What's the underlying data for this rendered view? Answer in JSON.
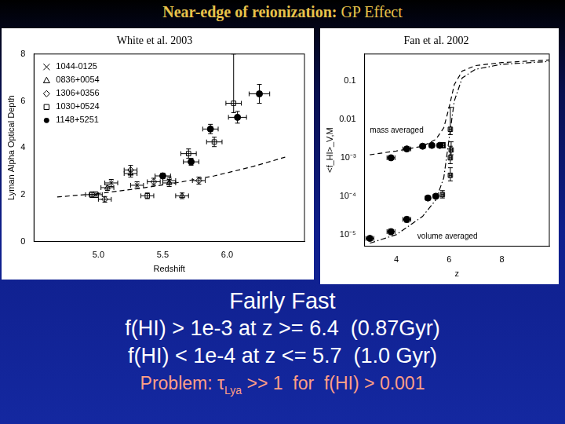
{
  "slide": {
    "title": "Near-edge of reionization:",
    "title_rest": "GP Effect",
    "lines": [
      "Fairly Fast",
      "f(HI) > 1e-3 at z >= 6.4  (0.87Gyr)",
      "f(HI) < 1e-4 at z <= 5.7  (1.0 Gyr)"
    ],
    "problem": [
      {
        "text": "Problem: τ"
      },
      {
        "text": "Lya",
        "sub": true
      },
      {
        "text": " >> 1  for  f(HI) > 0.001"
      }
    ]
  },
  "chart_data": [
    {
      "type": "scatter",
      "title": "White et al. 2003",
      "x_label": "Redshift",
      "y_label": "Lyman Alpha Optical Depth",
      "xlim": [
        4.5,
        6.6
      ],
      "xticks": [
        {
          "value": 5,
          "label": "5.0"
        },
        {
          "value": 5.5,
          "label": "5.5"
        },
        {
          "value": 6,
          "label": "6.0"
        }
      ],
      "ylim": [
        0,
        8
      ],
      "yticks": [
        0,
        2,
        4,
        6,
        8
      ],
      "grid": false,
      "legend": "top-left",
      "series": [
        {
          "name": "1044-0125",
          "color": "#000000",
          "marker": "x",
          "x": [
            4.98,
            5.1,
            5.3,
            5.55
          ],
          "values": [
            2.0,
            2.5,
            2.4,
            2.6
          ],
          "x_err": [
            0.05,
            0.05,
            0.05,
            0.05
          ],
          "y_err": [
            [
              0.12,
              0.12
            ],
            [
              0.15,
              0.15
            ],
            [
              0.15,
              0.15
            ],
            [
              0.15,
              0.15
            ]
          ]
        },
        {
          "name": "0836+0054",
          "color": "#000000",
          "marker": "triangle",
          "x": [
            5.07,
            5.25,
            5.55,
            5.65
          ],
          "values": [
            2.3,
            2.9,
            2.5,
            1.95
          ],
          "x_err": [
            0.05,
            0.05,
            0.05,
            0.05
          ],
          "y_err": [
            [
              0.12,
              0.12
            ],
            [
              0.15,
              0.15
            ],
            [
              0.15,
              0.15
            ],
            [
              0.12,
              0.12
            ]
          ]
        },
        {
          "name": "1306+0356",
          "color": "#000000",
          "marker": "diamond",
          "x": [
            5.05,
            5.25,
            5.43,
            5.78
          ],
          "values": [
            1.8,
            3.05,
            2.55,
            2.6
          ],
          "x_err": [
            0.05,
            0.05,
            0.05,
            0.05
          ],
          "y_err": [
            [
              0.12,
              0.12
            ],
            [
              0.2,
              0.2
            ],
            [
              0.15,
              0.15
            ],
            [
              0.15,
              0.15
            ]
          ]
        },
        {
          "name": "1030+0524",
          "color": "#000000",
          "marker": "square",
          "x": [
            4.95,
            5.38,
            5.7,
            5.9,
            6.05
          ],
          "values": [
            2.0,
            1.95,
            3.75,
            4.25,
            5.9
          ],
          "x_err": [
            0.05,
            0.05,
            0.06,
            0.06,
            0.06
          ],
          "y_err": [
            [
              0.12,
              0.12
            ],
            [
              0.12,
              0.12
            ],
            [
              0.2,
              0.2
            ],
            [
              0.2,
              0.2
            ],
            [
              0.4,
              2.1
            ]
          ]
        },
        {
          "name": "1148+5251",
          "color": "#000000",
          "marker": "circle",
          "x": [
            5.5,
            5.72,
            5.87,
            6.08,
            6.25
          ],
          "values": [
            2.8,
            3.4,
            4.8,
            5.3,
            6.3
          ],
          "x_err": [
            0.06,
            0.06,
            0.06,
            0.07,
            0.08
          ],
          "y_err": [
            [
              0.12,
              0.12
            ],
            [
              0.15,
              0.15
            ],
            [
              0.2,
              0.2
            ],
            [
              0.25,
              0.25
            ],
            [
              0.4,
              0.4
            ]
          ]
        },
        {
          "type": "line",
          "color": "#000000",
          "line_style": "dashed",
          "x": [
            4.68,
            5.0,
            5.3,
            5.6,
            5.9,
            6.2,
            6.45
          ],
          "values": [
            1.9,
            2.05,
            2.25,
            2.5,
            2.8,
            3.2,
            3.6
          ]
        }
      ]
    },
    {
      "type": "scatter",
      "title": "Fan et al. 2002",
      "x_label": "z",
      "y_label": "<f_HI>_V,M",
      "log": "y",
      "grid": false,
      "xlim": [
        2.8,
        9.8
      ],
      "xticks": [
        4,
        6,
        8
      ],
      "ylim": [
        5e-06,
        0.5
      ],
      "yticks": [
        {
          "value": 1e-05,
          "label": "10⁻⁵"
        },
        {
          "value": 0.0001,
          "label": "10⁻⁴"
        },
        {
          "value": 0.001,
          "label": "10⁻³"
        },
        {
          "value": 0.01,
          "label": "0.01"
        },
        {
          "value": 0.1,
          "label": "0.1"
        }
      ],
      "annotations": [
        {
          "text": "mass averaged",
          "x": 3.0,
          "y": 0.005
        },
        {
          "text": "volume averaged",
          "x": 4.8,
          "y": 9e-06
        }
      ],
      "series": [
        {
          "color": "#000000",
          "marker": "circle",
          "x": [
            3.8,
            4.4,
            5.0,
            5.35,
            5.65
          ],
          "values": [
            0.001,
            0.0017,
            0.002,
            0.0021,
            0.0021
          ],
          "x_err": [
            0.15,
            0.15,
            0.1,
            0.1,
            0.1
          ],
          "y_err": [
            [
              0.0001,
              0.0001
            ],
            [
              0.0002,
              0.0002
            ],
            [
              0.0002,
              0.0002
            ],
            [
              0.0002,
              0.0002
            ],
            [
              0.0002,
              0.0002
            ]
          ]
        },
        {
          "color": "#000000",
          "marker": "square",
          "x": [
            5.78,
            6.05,
            6.08
          ],
          "values": [
            0.0021,
            0.0055,
            0.0016
          ],
          "x_err": [
            0.05,
            0.05,
            0.05
          ],
          "y_err": [
            [
              0.0003,
              0.0004
            ],
            [
              0.0015,
              0.015
            ],
            [
              0.0004,
              0.001
            ]
          ]
        },
        {
          "color": "#000000",
          "marker": "circle",
          "x": [
            3.0,
            3.8,
            4.4,
            5.2,
            5.5
          ],
          "values": [
            8e-06,
            1.2e-05,
            2.5e-05,
            9e-05,
            0.0001
          ],
          "x_err": [
            0.15,
            0.15,
            0.15,
            0.1,
            0.1
          ],
          "y_err": [
            [
              1e-06,
              1e-06
            ],
            [
              2e-06,
              2e-06
            ],
            [
              4e-06,
              4e-06
            ],
            [
              1e-05,
              1e-05
            ],
            [
              1e-05,
              1e-05
            ]
          ]
        },
        {
          "color": "#000000",
          "marker": "square",
          "x": [
            5.75,
            6.05,
            6.05
          ],
          "values": [
            0.00011,
            0.001,
            0.00035
          ],
          "x_err": [
            0.05,
            0.05,
            0.05
          ],
          "y_err": [
            [
              2e-05,
              3e-05
            ],
            [
              0.0003,
              0.001
            ],
            [
              0.0001,
              0.0002
            ]
          ]
        },
        {
          "type": "line",
          "color": "#000000",
          "line_style": "dashed",
          "x": [
            3.0,
            4.0,
            5.0,
            5.5,
            5.8,
            6.0,
            6.2,
            6.5,
            7.0,
            8.0,
            9.8
          ],
          "values": [
            0.0012,
            0.0015,
            0.002,
            0.003,
            0.006,
            0.02,
            0.08,
            0.18,
            0.25,
            0.3,
            0.35
          ]
        },
        {
          "type": "line",
          "color": "#000000",
          "line_style": "dashdot",
          "x": [
            3.0,
            4.0,
            5.0,
            5.5,
            5.8,
            6.0,
            6.2,
            6.5,
            7.0,
            8.0,
            9.8
          ],
          "values": [
            6e-06,
            1e-05,
            3e-05,
            8e-05,
            0.0003,
            0.003,
            0.03,
            0.12,
            0.2,
            0.27,
            0.32
          ]
        }
      ]
    }
  ]
}
